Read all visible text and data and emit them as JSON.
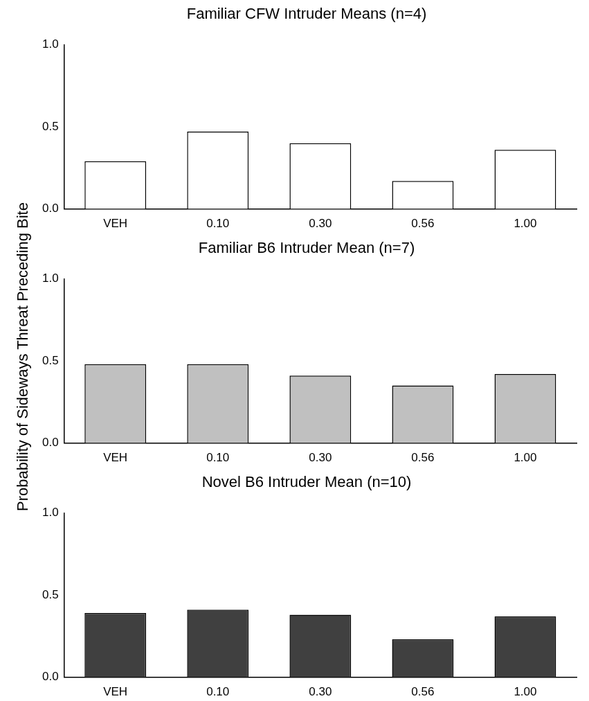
{
  "chart_data": [
    {
      "type": "bar",
      "title": "Familiar CFW Intruder Means (n=4)",
      "categories": [
        "VEH",
        "0.10",
        "0.30",
        "0.56",
        "1.00"
      ],
      "values": [
        0.29,
        0.47,
        0.4,
        0.17,
        0.36
      ],
      "color": "#ffffff",
      "ylim": [
        0,
        1
      ],
      "yticks": [
        {
          "value": 0,
          "label": "0.0"
        },
        {
          "value": 0.5,
          "label": "0.5"
        },
        {
          "value": 1,
          "label": "1.0"
        }
      ],
      "grid": false,
      "legend": false
    },
    {
      "type": "bar",
      "title": "Familiar B6 Intruder Mean (n=7)",
      "ylabel": "Probability of Sideways Threat Preceding Bite",
      "categories": [
        "VEH",
        "0.10",
        "0.30",
        "0.56",
        "1.00"
      ],
      "values": [
        0.48,
        0.48,
        0.41,
        0.35,
        0.42
      ],
      "color": "#c0c0c0",
      "ylim": [
        0,
        1
      ],
      "yticks": [
        {
          "value": 0,
          "label": "0.0"
        },
        {
          "value": 0.5,
          "label": "0.5"
        },
        {
          "value": 1,
          "label": "1.0"
        }
      ],
      "grid": false,
      "legend": false
    },
    {
      "type": "bar",
      "title": "Novel B6 Intruder Mean (n=10)",
      "categories": [
        "VEH",
        "0.10",
        "0.30",
        "0.56",
        "1.00"
      ],
      "values": [
        0.39,
        0.41,
        0.38,
        0.23,
        0.37
      ],
      "color": "#404040",
      "ylim": [
        0,
        1
      ],
      "yticks": [
        {
          "value": 0,
          "label": "0.0"
        },
        {
          "value": 0.5,
          "label": "0.5"
        },
        {
          "value": 1,
          "label": "1.0"
        }
      ],
      "grid": false,
      "legend": false
    }
  ]
}
